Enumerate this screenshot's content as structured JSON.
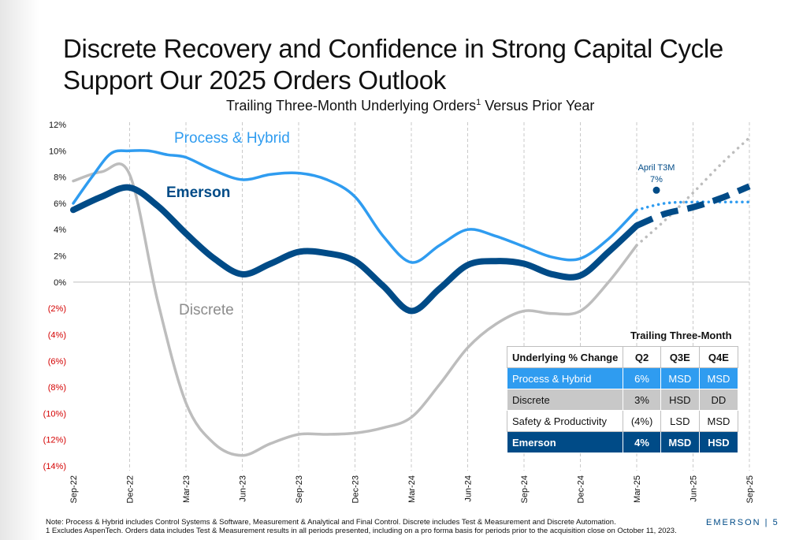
{
  "title": "Discrete Recovery and Confidence in Strong Capital Cycle Support Our 2025 Orders Outlook",
  "subtitle": "Trailing Three-Month Underlying Orders",
  "subtitle_sup": "1",
  "annotation": {
    "line1": "April T3M",
    "line2": "7%"
  },
  "table": {
    "caption": "Trailing Three-Month",
    "headers": [
      "Underlying % Change",
      "Q2",
      "Q3E",
      "Q4E"
    ],
    "subtitle_suffix": " Versus Prior Year",
    "rows": [
      {
        "name": "Process & Hybrid",
        "q2": "6%",
        "q3e": "MSD",
        "q4e": "MSD"
      },
      {
        "name": "Discrete",
        "q2": "3%",
        "q3e": "HSD",
        "q4e": "DD"
      },
      {
        "name": "Safety & Productivity",
        "q2": "(4%)",
        "q3e": "LSD",
        "q4e": "MSD"
      },
      {
        "name": "Emerson",
        "q2": "4%",
        "q3e": "MSD",
        "q4e": "HSD"
      }
    ]
  },
  "footnote": {
    "line1": "Note: Process & Hybrid includes Control Systems & Software, Measurement & Analytical and Final Control. Discrete includes Test & Measurement and Discrete Automation.",
    "line2": "1 Excludes AspenTech. Orders data includes Test & Measurement results in all periods presented, including on a pro forma basis for periods prior to the acquisition close on October 11, 2023."
  },
  "brand": "EMERSON",
  "page_number": "5",
  "colors": {
    "process_hybrid": "#2f9cf0",
    "emerson": "#004b87",
    "discrete": "#bdbdbd",
    "negative_tick": "#d40000"
  },
  "chart_data": {
    "type": "line",
    "categories": [
      "Sep-22",
      "Dec-22",
      "Mar-23",
      "Jun-23",
      "Sep-23",
      "Dec-23",
      "Mar-24",
      "Jun-24",
      "Sep-24",
      "Dec-24",
      "Mar-25",
      "Jun-25",
      "Sep-25"
    ],
    "ylim": [
      -14,
      12
    ],
    "yticks": [
      12,
      10,
      8,
      6,
      4,
      2,
      0,
      -2,
      -4,
      -6,
      -8,
      -10,
      -12,
      -14
    ],
    "ytick_labels": [
      "12%",
      "10%",
      "8%",
      "6%",
      "4%",
      "2%",
      "0%",
      "(2%)",
      "(4%)",
      "(6%)",
      "(8%)",
      "(10%)",
      "(12%)",
      "(14%)"
    ],
    "series": [
      {
        "name": "Process & Hybrid",
        "x": [
          0,
          0.33,
          0.67,
          1,
          1.33,
          1.67,
          2,
          2.5,
          3,
          3.5,
          4,
          4.5,
          5,
          5.5,
          6,
          6.5,
          7,
          7.5,
          8,
          8.5,
          9,
          9.5,
          10
        ],
        "values": [
          6,
          8,
          9.8,
          10,
          10,
          9.7,
          9.5,
          8.5,
          7.8,
          8.2,
          8.3,
          7.8,
          6.5,
          3.5,
          1.5,
          2.8,
          4,
          3.5,
          2.7,
          1.9,
          1.8,
          3.3,
          5.5
        ],
        "forecast_x": [
          10,
          10.5,
          11,
          11.5,
          12
        ],
        "forecast_values": [
          5.5,
          6,
          6.1,
          6.1,
          6.1
        ]
      },
      {
        "name": "Emerson",
        "x": [
          0,
          0.5,
          1,
          1.5,
          2,
          2.5,
          3,
          3.5,
          4,
          4.5,
          5,
          5.5,
          6,
          6.5,
          7,
          7.5,
          8,
          8.5,
          9,
          9.5,
          10
        ],
        "values": [
          5.5,
          6.5,
          7.2,
          5.8,
          3.7,
          1.8,
          0.6,
          1.4,
          2.3,
          2.2,
          1.6,
          -0.3,
          -2.2,
          -0.5,
          1.3,
          1.6,
          1.4,
          0.6,
          0.5,
          2.3,
          4.3
        ],
        "forecast_x": [
          10,
          10.5,
          11,
          11.5,
          12
        ],
        "forecast_values": [
          4.3,
          5.2,
          5.7,
          6.4,
          7.3
        ]
      },
      {
        "name": "Discrete",
        "x": [
          0,
          0.5,
          1,
          1.5,
          2,
          2.5,
          3,
          3.5,
          4,
          4.5,
          5,
          5.5,
          6,
          6.5,
          7,
          7.5,
          8,
          8.5,
          9,
          9.5,
          10
        ],
        "values": [
          7.7,
          8.4,
          8.2,
          -1.5,
          -9.2,
          -12.3,
          -13.2,
          -12.3,
          -11.6,
          -11.6,
          -11.5,
          -11.1,
          -10.3,
          -7.8,
          -5,
          -3.2,
          -2.2,
          -2.4,
          -2.2,
          0,
          2.8
        ],
        "forecast_x": [
          10,
          10.5,
          11,
          11.5,
          12
        ],
        "forecast_values": [
          2.8,
          4.7,
          6.8,
          9,
          11
        ]
      }
    ],
    "marker": {
      "x": 10.35,
      "value": 7
    }
  }
}
